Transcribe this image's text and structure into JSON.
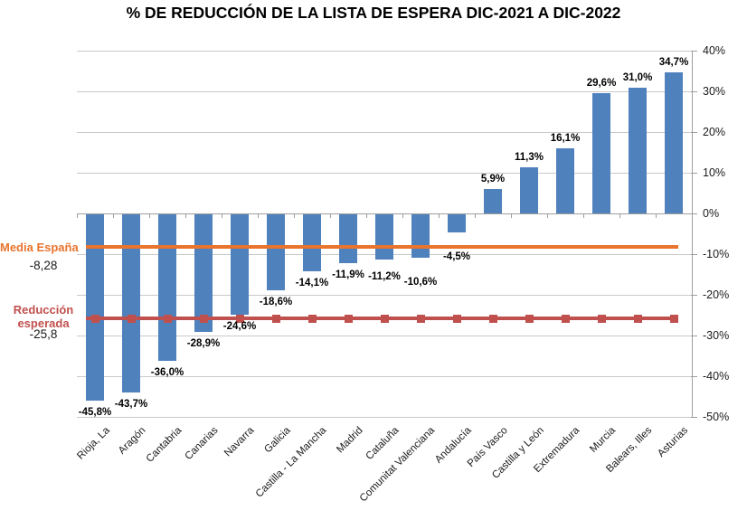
{
  "title": "% DE REDUCCIÓN DE LA LISTA DE ESPERA DIC-2021 A DIC-2022",
  "chart_data": {
    "type": "bar",
    "categories": [
      "Rioja, La",
      "Aragón",
      "Cantabria",
      "Canarias",
      "Navarra",
      "Galicia",
      "Castilla - La Mancha",
      "Madrid",
      "Cataluña",
      "Comunitat Valenciana",
      "Andalucía",
      "País Vasco",
      "Castilla y León",
      "Extremadura",
      "Murcia",
      "Balears, Illes",
      "Asturias"
    ],
    "values": [
      -45.8,
      -43.7,
      -36.0,
      -28.9,
      -24.6,
      -18.6,
      -14.1,
      -11.9,
      -11.2,
      -10.6,
      -4.5,
      5.9,
      11.3,
      16.1,
      29.6,
      31.0,
      34.7
    ],
    "value_labels": [
      "-45,8%",
      "-43,7%",
      "-36,0%",
      "-28,9%",
      "-24,6%",
      "-18,6%",
      "-14,1%",
      "-11,9%",
      "-11,2%",
      "-10,6%",
      "-4,5%",
      "5,9%",
      "11,3%",
      "16,1%",
      "29,6%",
      "31,0%",
      "34,7%"
    ],
    "bar_color": "#4f81bd",
    "ylim": [
      -50,
      40
    ],
    "ytick_step": 10,
    "ytick_labels": [
      "40%",
      "30%",
      "20%",
      "10%",
      "0%",
      "-10%",
      "-20%",
      "-30%",
      "-40%",
      "-50%"
    ],
    "grid": true,
    "axis_side": "right",
    "label_dy": [
      0,
      0,
      0,
      0,
      0,
      0,
      0,
      0,
      6,
      14,
      14,
      0,
      0,
      0,
      0,
      0,
      0
    ],
    "reference_lines": [
      {
        "name": "media-espana",
        "label": "Media España",
        "value": -8.28,
        "value_label": "-8,28",
        "color": "#e8742e",
        "marker": "none"
      },
      {
        "name": "reduccion-esperada",
        "label": "Reducción esperada",
        "value": -25.8,
        "value_label": "-25,8",
        "color": "#c0504d",
        "marker": "square"
      }
    ]
  }
}
